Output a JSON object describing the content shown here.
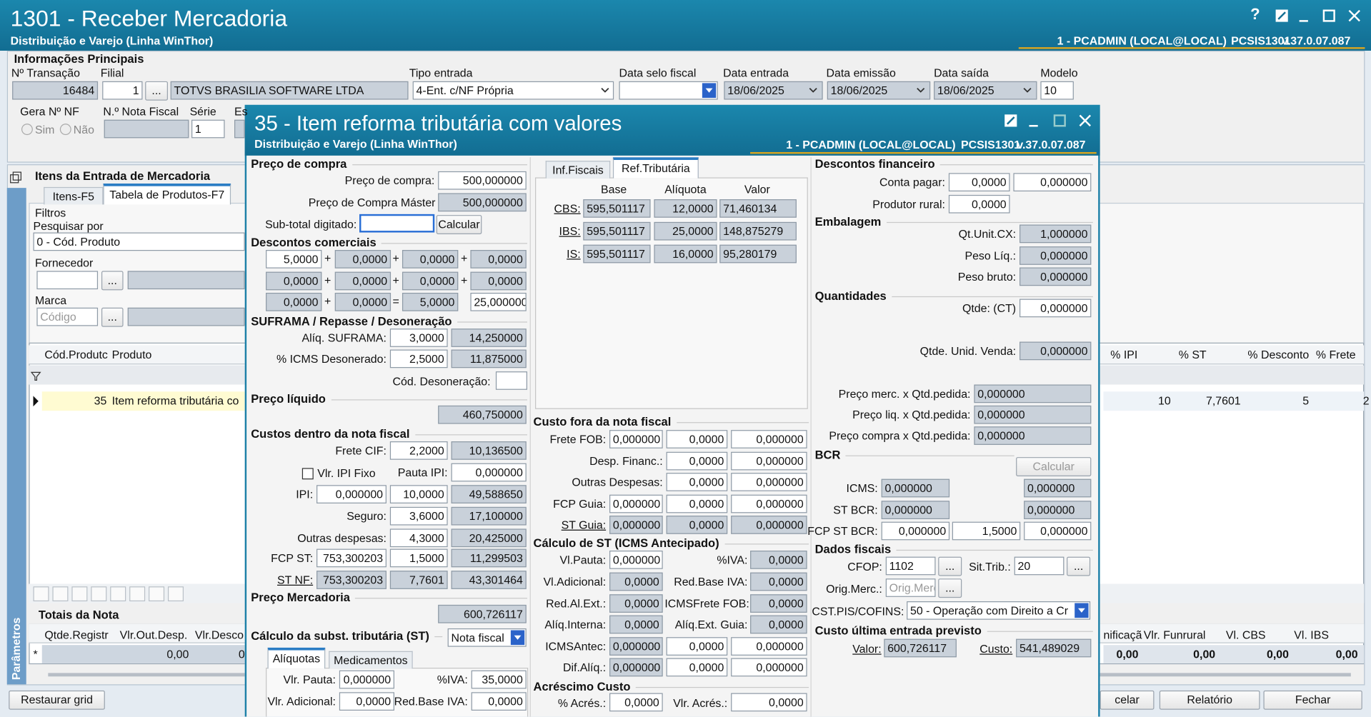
{
  "main": {
    "title": "1301 - Receber Mercadoria",
    "subtitle": "Distribuição e Varejo (Linha WinThor)",
    "help": "?",
    "status": {
      "user": "1 - PCADMIN (LOCAL@LOCAL)",
      "program": "PCSIS1301",
      "version": "v.37.0.07.087"
    },
    "principal": {
      "heading": "Informações Principais",
      "labels": [
        "Nº Transação",
        "Filial",
        "Tipo entrada",
        "Data selo fiscal",
        "Data entrada",
        "Data emissão",
        "Data saída",
        "Modelo"
      ],
      "transacao": "16484",
      "filial": "1",
      "filial_button": "...",
      "filial_name": "TOTVS BRASILIA SOFTWARE LTDA",
      "tipo_entrada": "4-Ent. c/NF Própria",
      "data_entrada": "18/06/2025",
      "data_emissao": "18/06/2025",
      "data_saida": "18/06/2025",
      "modelo": "10",
      "labels2": [
        "Gera Nº NF",
        "N.º Nota Fiscal",
        "Série",
        "Es"
      ],
      "options": [
        "Sim",
        "Não"
      ],
      "serie": "1"
    },
    "items": {
      "heading": "Itens da Entrada de Mercadoria",
      "tabs": [
        "Itens-F5",
        "Tabela de Produtos-F7"
      ],
      "filters": "Filtros",
      "search_label": "Pesquisar por",
      "search_value": "0 - Cód. Produto",
      "supplier_label": "Fornecedor",
      "brand_label": "Marca",
      "brand_placeholder": "Código",
      "more_button": "...",
      "columns_left": [
        "Cód.Produtc",
        "Produto"
      ],
      "columns_right": [
        "% IPI",
        "% ST",
        "% Desconto",
        "% Frete"
      ],
      "row_left": [
        "35",
        "Item reforma tributária co"
      ],
      "row_right": [
        "10",
        "7,7601",
        "5",
        "2"
      ]
    },
    "totals": {
      "heading": "Totais da Nota",
      "columns_left": [
        "Qtde.Registr",
        "Vlr.Out.Desp.",
        "Vlr.Desco"
      ],
      "columns_right": [
        "nificaçã",
        "Vlr. Funrural",
        "Vl. CBS",
        "Vl. IBS"
      ],
      "row_marker": "*",
      "row_left": [
        "0,00",
        "0"
      ],
      "row_right": [
        "0,00",
        "0,00",
        "0,00",
        "0,00"
      ]
    },
    "side_tab": "Parâmetros",
    "buttons": [
      "Restaurar grid",
      "celar",
      "Relatório",
      "Fechar"
    ]
  },
  "dialog": {
    "title": "35 - Item reforma tributária com valores",
    "subtitle": "Distribuição e Varejo (Linha WinThor)",
    "status": {
      "user": "1 - PCADMIN (LOCAL@LOCAL)",
      "program": "PCSIS1301",
      "version": "v.37.0.07.087"
    },
    "purchase": {
      "heading": "Preço de compra",
      "price_label": "Preço de compra:",
      "price": "500,000000",
      "master_label": "Preço de Compra Máster",
      "master": "500,000000",
      "subtotal_label": "Sub-total digitado:",
      "calc_button": "Calcular"
    },
    "discounts": {
      "heading": "Descontos comerciais",
      "rows": [
        [
          "5,0000",
          "0,0000",
          "0,0000",
          "0,0000"
        ],
        [
          "0,0000",
          "0,0000",
          "0,0000",
          "0,0000"
        ],
        [
          "0,0000",
          "0,0000",
          "5,0000",
          "25,000000"
        ]
      ],
      "plus": "+",
      "equals": "="
    },
    "suframa": {
      "heading": "SUFRAMA / Repasse / Desoneração",
      "rows": [
        [
          "Alíq. SUFRAMA:",
          "3,0000",
          "14,250000"
        ],
        [
          "% ICMS Desonerado:",
          "2,5000",
          "11,875000"
        ]
      ],
      "code_label": "Cód. Desoneração:"
    },
    "net_price": {
      "heading": "Preço líquido",
      "value": "460,750000"
    },
    "inner_costs": {
      "heading": "Custos dentro da nota fiscal",
      "freight": [
        "Frete CIF:",
        "2,2000",
        "10,136500"
      ],
      "ipi_fixed": "Vlr. IPI Fixo",
      "ipi_scale": [
        "Pauta IPI:",
        "0,000000"
      ],
      "ipi": [
        "IPI:",
        "0,000000",
        "10,0000",
        "49,588650"
      ],
      "insurance": [
        "Seguro:",
        "3,6000",
        "17,100000"
      ],
      "other": [
        "Outras despesas:",
        "4,3000",
        "20,425000"
      ],
      "fcp_st": [
        "FCP ST:",
        "753,300203",
        "1,5000",
        "11,299503"
      ],
      "st_nf": [
        "ST NF:",
        "753,300203",
        "7,7601",
        "43,301464"
      ]
    },
    "goods_price": {
      "heading": "Preço Mercadoria",
      "value": "600,726117"
    },
    "st_calc": {
      "heading": "Cálculo da subst. tributária (ST)",
      "mode": "Nota fiscal",
      "tabs": [
        "Alíquotas",
        "Medicamentos"
      ],
      "rows": [
        [
          "Vlr. Pauta:",
          "0,000000",
          "%IVA:",
          "35,0000"
        ],
        [
          "Vlr. Adicional:",
          "0,0000",
          "Red.Base IVA:",
          "0,0000"
        ]
      ]
    },
    "tax_reform": {
      "tabs": [
        "Inf.Fiscais",
        "Ref.Tributária"
      ],
      "columns": [
        "Base",
        "Alíquota",
        "Valor"
      ],
      "rows": [
        [
          "CBS:",
          "595,501117",
          "12,0000",
          "71,460134"
        ],
        [
          "IBS:",
          "595,501117",
          "25,0000",
          "148,875279"
        ],
        [
          "IS:",
          "595,501117",
          "16,0000",
          "95,280179"
        ]
      ]
    },
    "outer_costs": {
      "heading": "Custo fora da nota fiscal",
      "rows": [
        [
          "Frete FOB:",
          "0,000000",
          "0,0000",
          "0,000000"
        ],
        [
          "Desp. Financ.:",
          "0,0000",
          "0,000000"
        ],
        [
          "Outras Despesas:",
          "0,0000",
          "0,000000"
        ],
        [
          "FCP Guia:",
          "0,000000",
          "0,0000",
          "0,000000"
        ],
        [
          "ST Guia:",
          "0,000000",
          "0,0000",
          "0,000000"
        ]
      ]
    },
    "st_antecipado": {
      "heading": "Cálculo de ST (ICMS Antecipado)",
      "rows": [
        [
          "Vl.Pauta:",
          "0,000000",
          "%IVA:",
          "0,0000"
        ],
        [
          "Vl.Adicional:",
          "0,0000",
          "Red.Base IVA:",
          "0,0000"
        ],
        [
          "Red.Al.Ext.:",
          "0,0000",
          "ICMSFrete FOB:",
          "0,0000"
        ],
        [
          "Alíq.Interna:",
          "0,0000",
          "Alíq.Ext. Guia:",
          "0,0000"
        ],
        [
          "ICMSAntec:",
          "0,000000",
          "0,0000",
          "0,000000"
        ],
        [
          "Dif.Alíq.:",
          "0,000000",
          "0,0000",
          "0,000000"
        ]
      ]
    },
    "surcharge": {
      "heading": "Acréscimo Custo",
      "rows": [
        [
          "% Acrés.:",
          "0,0000",
          "Vlr. Acrés.:",
          "0,0000"
        ]
      ]
    },
    "financial": {
      "heading": "Descontos financeiro",
      "rows": [
        [
          "Conta pagar:",
          "0,0000",
          "0,000000"
        ],
        [
          "Produtor rural:",
          "0,0000"
        ]
      ]
    },
    "packaging": {
      "heading": "Embalagem",
      "rows": [
        [
          "Qt.Unit.CX:",
          "1,000000"
        ],
        [
          "Peso Líq.:",
          "0,000000"
        ],
        [
          "Peso bruto:",
          "0,000000"
        ]
      ]
    },
    "quantities": {
      "heading": "Quantidades",
      "rows": [
        [
          "Qtde: (CT)",
          "0,000000"
        ],
        [
          "Qtde. Unid. Venda:",
          "0,000000"
        ],
        [
          "Preço merc. x Qtd.pedida:",
          "0,000000"
        ],
        [
          "Preço liq. x Qtd.pedida:",
          "0,000000"
        ],
        [
          "Preço compra x Qtd.pedida:",
          "0,000000"
        ]
      ]
    },
    "bcr": {
      "heading": "BCR",
      "calc_button": "Calcular",
      "rows": [
        [
          "ICMS:",
          "0,000000",
          "0,000000"
        ],
        [
          "ST BCR:",
          "0,000000",
          "0,000000"
        ],
        [
          "FCP ST BCR:",
          "0,000000",
          "1,5000",
          "0,000000"
        ]
      ]
    },
    "fiscal": {
      "heading": "Dados fiscais",
      "cfop_label": "CFOP:",
      "cfop": "1102",
      "more_button": "...",
      "sit_label": "Sit.Trib.:",
      "sit": "20",
      "origin_label": "Orig.Merc.:",
      "origin_placeholder": "Orig.Merc",
      "cst_label": "CST.PIS/COFINS:",
      "cst": "50 - Operação com Direito a Cr"
    },
    "last_cost": {
      "heading": "Custo última entrada previsto",
      "value_label": "Valor:",
      "value": "600,726117",
      "cost_label": "Custo:",
      "cost": "541,489029"
    }
  }
}
